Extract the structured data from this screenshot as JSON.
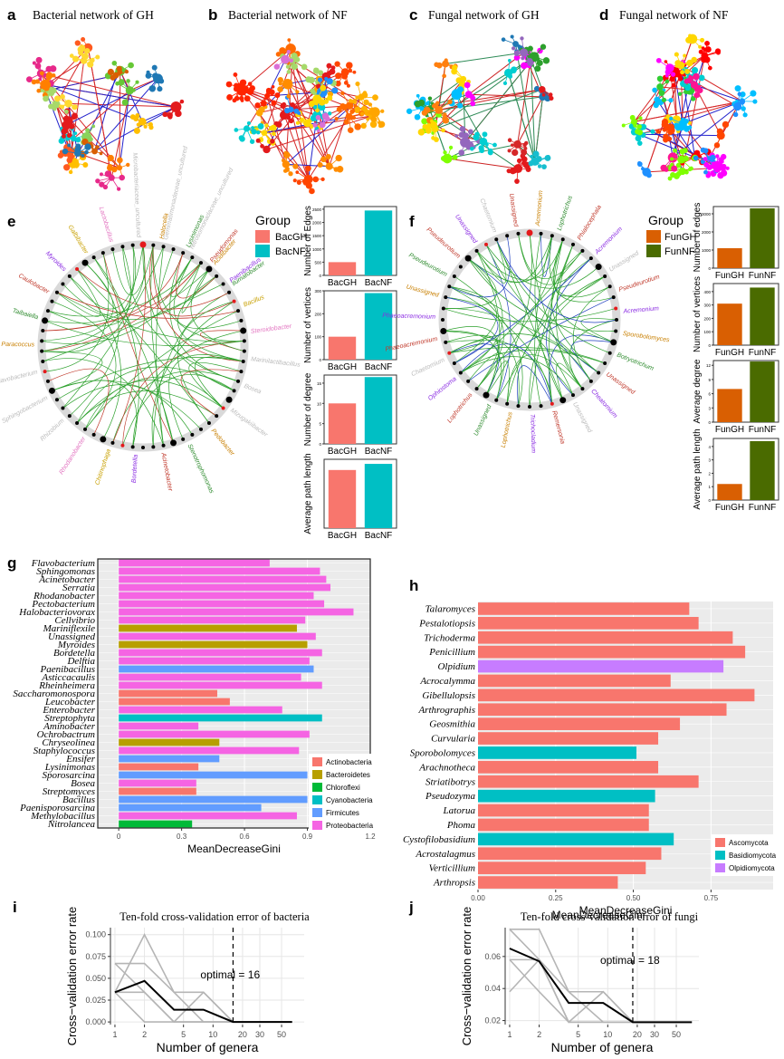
{
  "colors": {
    "actinobacteria": "#f8766d",
    "bacteroidetes": "#b79f00",
    "chloroflexi": "#00ba38",
    "cyanobacteria": "#00bfc4",
    "firmicutes": "#619cff",
    "proteobacteria": "#f564e3",
    "ascomycota": "#f8766d",
    "basidiomycota": "#00bfc4",
    "olpidiomycota": "#c77cff",
    "bacgh": "#f8766d",
    "bacnf": "#00bfc4",
    "fungh": "#d95f02",
    "funnf": "#4a6b00"
  },
  "panels": {
    "a": {
      "letter": "a",
      "title": "Bacterial network of GH"
    },
    "b": {
      "letter": "b",
      "title": "Bacterial network of NF"
    },
    "c": {
      "letter": "c",
      "title": "Fungal network of GH"
    },
    "d": {
      "letter": "d",
      "title": "Fungal network of NF"
    },
    "e": {
      "letter": "e"
    },
    "f": {
      "letter": "f"
    },
    "g": {
      "letter": "g"
    },
    "h": {
      "letter": "h"
    },
    "i": {
      "letter": "i"
    },
    "j": {
      "letter": "j"
    }
  },
  "legend_e": {
    "title": "Group",
    "items": [
      "BacGH",
      "BacNF"
    ]
  },
  "legend_f": {
    "title": "Group",
    "items": [
      "FunGH",
      "FunNF"
    ]
  },
  "circle_e_labels": [
    "Halocella",
    "Lysinimonas",
    "Pseudomonas",
    "Paenibacillus",
    "Bacillus",
    "Steroidobacter",
    "Marinilactibacillus",
    "Bosea",
    "Mizugakiibacter",
    "Pedobacter",
    "Stenotrophomonas",
    "Acinetobacter",
    "Bordetella",
    "Chitinophaga",
    "Rhodanobacter",
    "Rhizobium",
    "Sphingobacterium",
    "Flavobacterium",
    "Paracoccus",
    "Taibaiella",
    "Caulobacter",
    "Myroides",
    "Galbibacter",
    "Lactobacillus",
    "Microbacteriaceae_uncultured",
    "Gemmatimonadaceae_uncultured",
    "Nitrosomonadaceae_uncultured",
    "Acidibacter",
    "Ilumatobacter"
  ],
  "circle_f_labels": [
    "Acremonium",
    "Lophotrichus",
    "Phialocephala",
    "Acremonium",
    "Unassigned",
    "Pseudeurotium",
    "Acremonium",
    "Sporobolomyces",
    "Botryotrichum",
    "Unassigned",
    "Cheatomium",
    "Unassigned",
    "Remersonia",
    "Trichocladium",
    "Lophotrichus",
    "Unassigned",
    "Lophotrichus",
    "Ophiostoma",
    "Chaetomium",
    "Phaeoacremonium",
    "Phaeoacremonium",
    "Unassigned",
    "Pseudeurotium",
    "Pseudeurotium",
    "Unassigned",
    "Chaetomium",
    "Unassigned"
  ],
  "chart_data": [
    {
      "panel": "e-edges",
      "type": "bar",
      "categories": [
        "BacGH",
        "BacNF"
      ],
      "values": [
        500,
        2450
      ],
      "ylabel": "Number of Edges",
      "ylim": [
        0,
        2600
      ],
      "yticks": [
        0,
        500,
        1000,
        1500,
        2000,
        2500
      ]
    },
    {
      "panel": "e-vertices",
      "type": "bar",
      "categories": [
        "BacGH",
        "BacNF"
      ],
      "values": [
        100,
        290
      ],
      "ylabel": "Number of vertices",
      "ylim": [
        0,
        300
      ],
      "yticks": [
        0,
        100,
        200,
        300
      ]
    },
    {
      "panel": "e-degree",
      "type": "bar",
      "categories": [
        "BacGH",
        "BacNF"
      ],
      "values": [
        10,
        16.5
      ],
      "ylabel": "Number of degree",
      "ylim": [
        0,
        17
      ],
      "yticks": [
        0,
        5,
        10,
        15
      ]
    },
    {
      "panel": "e-path",
      "type": "bar",
      "categories": [
        "BacGH",
        "BacNF"
      ],
      "values": [
        3.8,
        4.2
      ],
      "ylabel": "Average path length",
      "ylim": [
        0,
        4.5
      ],
      "yticks": []
    },
    {
      "panel": "f-edges",
      "type": "bar",
      "categories": [
        "FunGH",
        "FunNF"
      ],
      "values": [
        1100,
        3300
      ],
      "ylabel": "Number of edges",
      "ylim": [
        0,
        3400
      ],
      "yticks": [
        0,
        1000,
        2000,
        3000
      ]
    },
    {
      "panel": "f-vertices",
      "type": "bar",
      "categories": [
        "FunGH",
        "FunNF"
      ],
      "values": [
        310,
        430
      ],
      "ylabel": "Number of vertices",
      "ylim": [
        0,
        460
      ],
      "yticks": [
        0,
        100,
        200,
        300,
        400
      ]
    },
    {
      "panel": "f-degree",
      "type": "bar",
      "categories": [
        "FunGH",
        "FunNF"
      ],
      "values": [
        7,
        12.8
      ],
      "ylabel": "Average degree",
      "ylim": [
        0,
        13
      ],
      "yticks": [
        0,
        3,
        6,
        9,
        12
      ]
    },
    {
      "panel": "f-path",
      "type": "bar",
      "categories": [
        "FunGH",
        "FunNF"
      ],
      "values": [
        1.2,
        4.4
      ],
      "ylabel": "Average path length",
      "ylim": [
        0,
        4.6
      ],
      "yticks": [
        0,
        1,
        2,
        3,
        4
      ]
    },
    {
      "panel": "g",
      "type": "bar",
      "orientation": "horizontal",
      "xlabel": "MeanDecreaseGini",
      "xlim": [
        -0.1,
        1.2
      ],
      "xticks": [
        0.0,
        0.3,
        0.6,
        0.9,
        1.2
      ],
      "xtick_labels": [
        "0",
        "0.3",
        "0.6",
        "0.9",
        "1.2"
      ],
      "legend": [
        "Actinobacteria",
        "Bacteroidetes",
        "Chloroflexi",
        "Cyanobacteria",
        "Firmicutes",
        "Proteobacteria"
      ],
      "categories": [
        "Flavobacterium",
        "Sphingomonas",
        "Acinetobacter",
        "Serratia",
        "Rhodanobacter",
        "Pectobacterium",
        "Halobacteriovorax",
        "Cellvibrio",
        "Mariniflexile",
        "Unassigned",
        "Myroides",
        "Bordetella",
        "Delftia",
        "Paenibacillus",
        "Asticcacaulis",
        "Rheinheimera",
        "Saccharomonospora",
        "Leucobacter",
        "Enterobacter",
        "Streptophyta",
        "Aminobacter",
        "Ochrobactrum",
        "Chryseolinea",
        "Staphylococcus",
        "Ensifer",
        "Lysinimonas",
        "Sporosarcina",
        "Bosea",
        "Streptomyces",
        "Bacillus",
        "Paenisporosarcina",
        "Methylobacillus",
        "Nitrolancea"
      ],
      "values": [
        0.72,
        0.96,
        0.99,
        1.01,
        0.93,
        0.98,
        1.12,
        0.89,
        0.85,
        0.94,
        0.9,
        0.97,
        0.91,
        0.93,
        0.87,
        0.97,
        0.47,
        0.53,
        0.78,
        0.97,
        0.38,
        0.91,
        0.48,
        0.86,
        0.48,
        0.38,
        0.9,
        0.37,
        0.37,
        0.9,
        0.68,
        0.85,
        0.35
      ],
      "phylum": [
        "proteobacteria",
        "proteobacteria",
        "proteobacteria",
        "proteobacteria",
        "proteobacteria",
        "proteobacteria",
        "proteobacteria",
        "proteobacteria",
        "bacteroidetes",
        "proteobacteria",
        "bacteroidetes",
        "proteobacteria",
        "proteobacteria",
        "firmicutes",
        "proteobacteria",
        "proteobacteria",
        "actinobacteria",
        "actinobacteria",
        "proteobacteria",
        "cyanobacteria",
        "proteobacteria",
        "proteobacteria",
        "bacteroidetes",
        "proteobacteria",
        "firmicutes",
        "actinobacteria",
        "firmicutes",
        "proteobacteria",
        "actinobacteria",
        "firmicutes",
        "firmicutes",
        "proteobacteria",
        "chloroflexi"
      ]
    },
    {
      "panel": "h",
      "type": "bar",
      "orientation": "horizontal",
      "xlabel": "MeanDecreaseGini",
      "xlim": [
        0,
        0.95
      ],
      "xticks": [
        0.0,
        0.25,
        0.5,
        0.75
      ],
      "xtick_labels": [
        "0.00",
        "0.25",
        "0.50",
        "0.75"
      ],
      "legend": [
        "Ascomycota",
        "Basidiomycota",
        "Olpidiomycota"
      ],
      "categories": [
        "Talaromyces",
        "Pestalotiopsis",
        "Trichoderma",
        "Penicillium",
        "Olpidium",
        "Acrocalymma",
        "Gibellulopsis",
        "Arthrographis",
        "Geosmithia",
        "Curvularia",
        "Sporobolomyces",
        "Arachnotheca",
        "Striatibotrys",
        "Pseudozyma",
        "Latorua",
        "Phoma",
        "Cystofilobasidium",
        "Acrostalagmus",
        "Verticillium",
        "Arthropsis"
      ],
      "values": [
        0.68,
        0.71,
        0.82,
        0.86,
        0.79,
        0.62,
        0.89,
        0.8,
        0.65,
        0.58,
        0.51,
        0.58,
        0.71,
        0.57,
        0.55,
        0.55,
        0.63,
        0.59,
        0.54,
        0.45
      ],
      "phylum": [
        "ascomycota",
        "ascomycota",
        "ascomycota",
        "ascomycota",
        "olpidiomycota",
        "ascomycota",
        "ascomycota",
        "ascomycota",
        "ascomycota",
        "ascomycota",
        "basidiomycota",
        "ascomycota",
        "ascomycota",
        "basidiomycota",
        "ascomycota",
        "ascomycota",
        "basidiomycota",
        "ascomycota",
        "ascomycota",
        "ascomycota"
      ]
    },
    {
      "panel": "i",
      "type": "line",
      "title": "Ten-fold cross-validation error of bacteria",
      "xlabel": "Number of genera",
      "ylabel": "Cross−validation error rate",
      "xscale": "log",
      "xlim": [
        0.9,
        85
      ],
      "ylim": [
        -0.003,
        0.108
      ],
      "xticks": [
        1,
        2,
        5,
        10,
        20,
        30,
        50
      ],
      "yticks": [
        0.0,
        0.025,
        0.05,
        0.075,
        0.1
      ],
      "ytick_labels": [
        "0.000",
        "0.025",
        "0.050",
        "0.075",
        "0.100"
      ],
      "x": [
        1,
        2,
        4,
        8,
        16,
        32,
        64
      ],
      "mean": [
        0.034,
        0.047,
        0.014,
        0.014,
        0.0,
        0.0,
        0.0
      ],
      "folds": [
        [
          0.034,
          0.1,
          0.034,
          0.034,
          0.0,
          0.0,
          0.0
        ],
        [
          0.067,
          0.067,
          0.034,
          0.0,
          0.0,
          0.0,
          0.0
        ],
        [
          0.034,
          0.034,
          0.0,
          0.034,
          0.0,
          0.0,
          0.0
        ],
        [
          0.067,
          0.034,
          0.0,
          0.0,
          0.0,
          0.0,
          0.0
        ],
        [
          0.034,
          0.0,
          0.0,
          0.0,
          0.0,
          0.0,
          0.0
        ]
      ],
      "optimal": 16,
      "annotation": "optimal = 16"
    },
    {
      "panel": "j",
      "type": "line",
      "title": "Ten-fold cross-validation error of fungi",
      "xlabel": "Number of genera",
      "ylabel": "Cross−validation error rate",
      "xscale": "log",
      "xlim": [
        0.9,
        85
      ],
      "ylim": [
        0.0175,
        0.078
      ],
      "xticks": [
        1,
        2,
        5,
        10,
        20,
        30,
        50
      ],
      "yticks": [
        0.02,
        0.04,
        0.06
      ],
      "ytick_labels": [
        "0.02",
        "0.04",
        "0.06"
      ],
      "x": [
        1,
        2,
        4,
        9,
        18,
        36,
        72
      ],
      "mean": [
        0.065,
        0.057,
        0.031,
        0.031,
        0.019,
        0.019,
        0.019
      ],
      "folds": [
        [
          0.077,
          0.077,
          0.038,
          0.038,
          0.019,
          0.019,
          0.019
        ],
        [
          0.077,
          0.058,
          0.019,
          0.038,
          0.019,
          0.019,
          0.019
        ],
        [
          0.058,
          0.058,
          0.038,
          0.019,
          0.019,
          0.019,
          0.019
        ],
        [
          0.038,
          0.058,
          0.019,
          0.019,
          0.019,
          0.019,
          0.019
        ],
        [
          0.058,
          0.038,
          0.019,
          0.019,
          0.019,
          0.019,
          0.019
        ]
      ],
      "optimal": 18,
      "annotation": "optimal = 18"
    }
  ]
}
